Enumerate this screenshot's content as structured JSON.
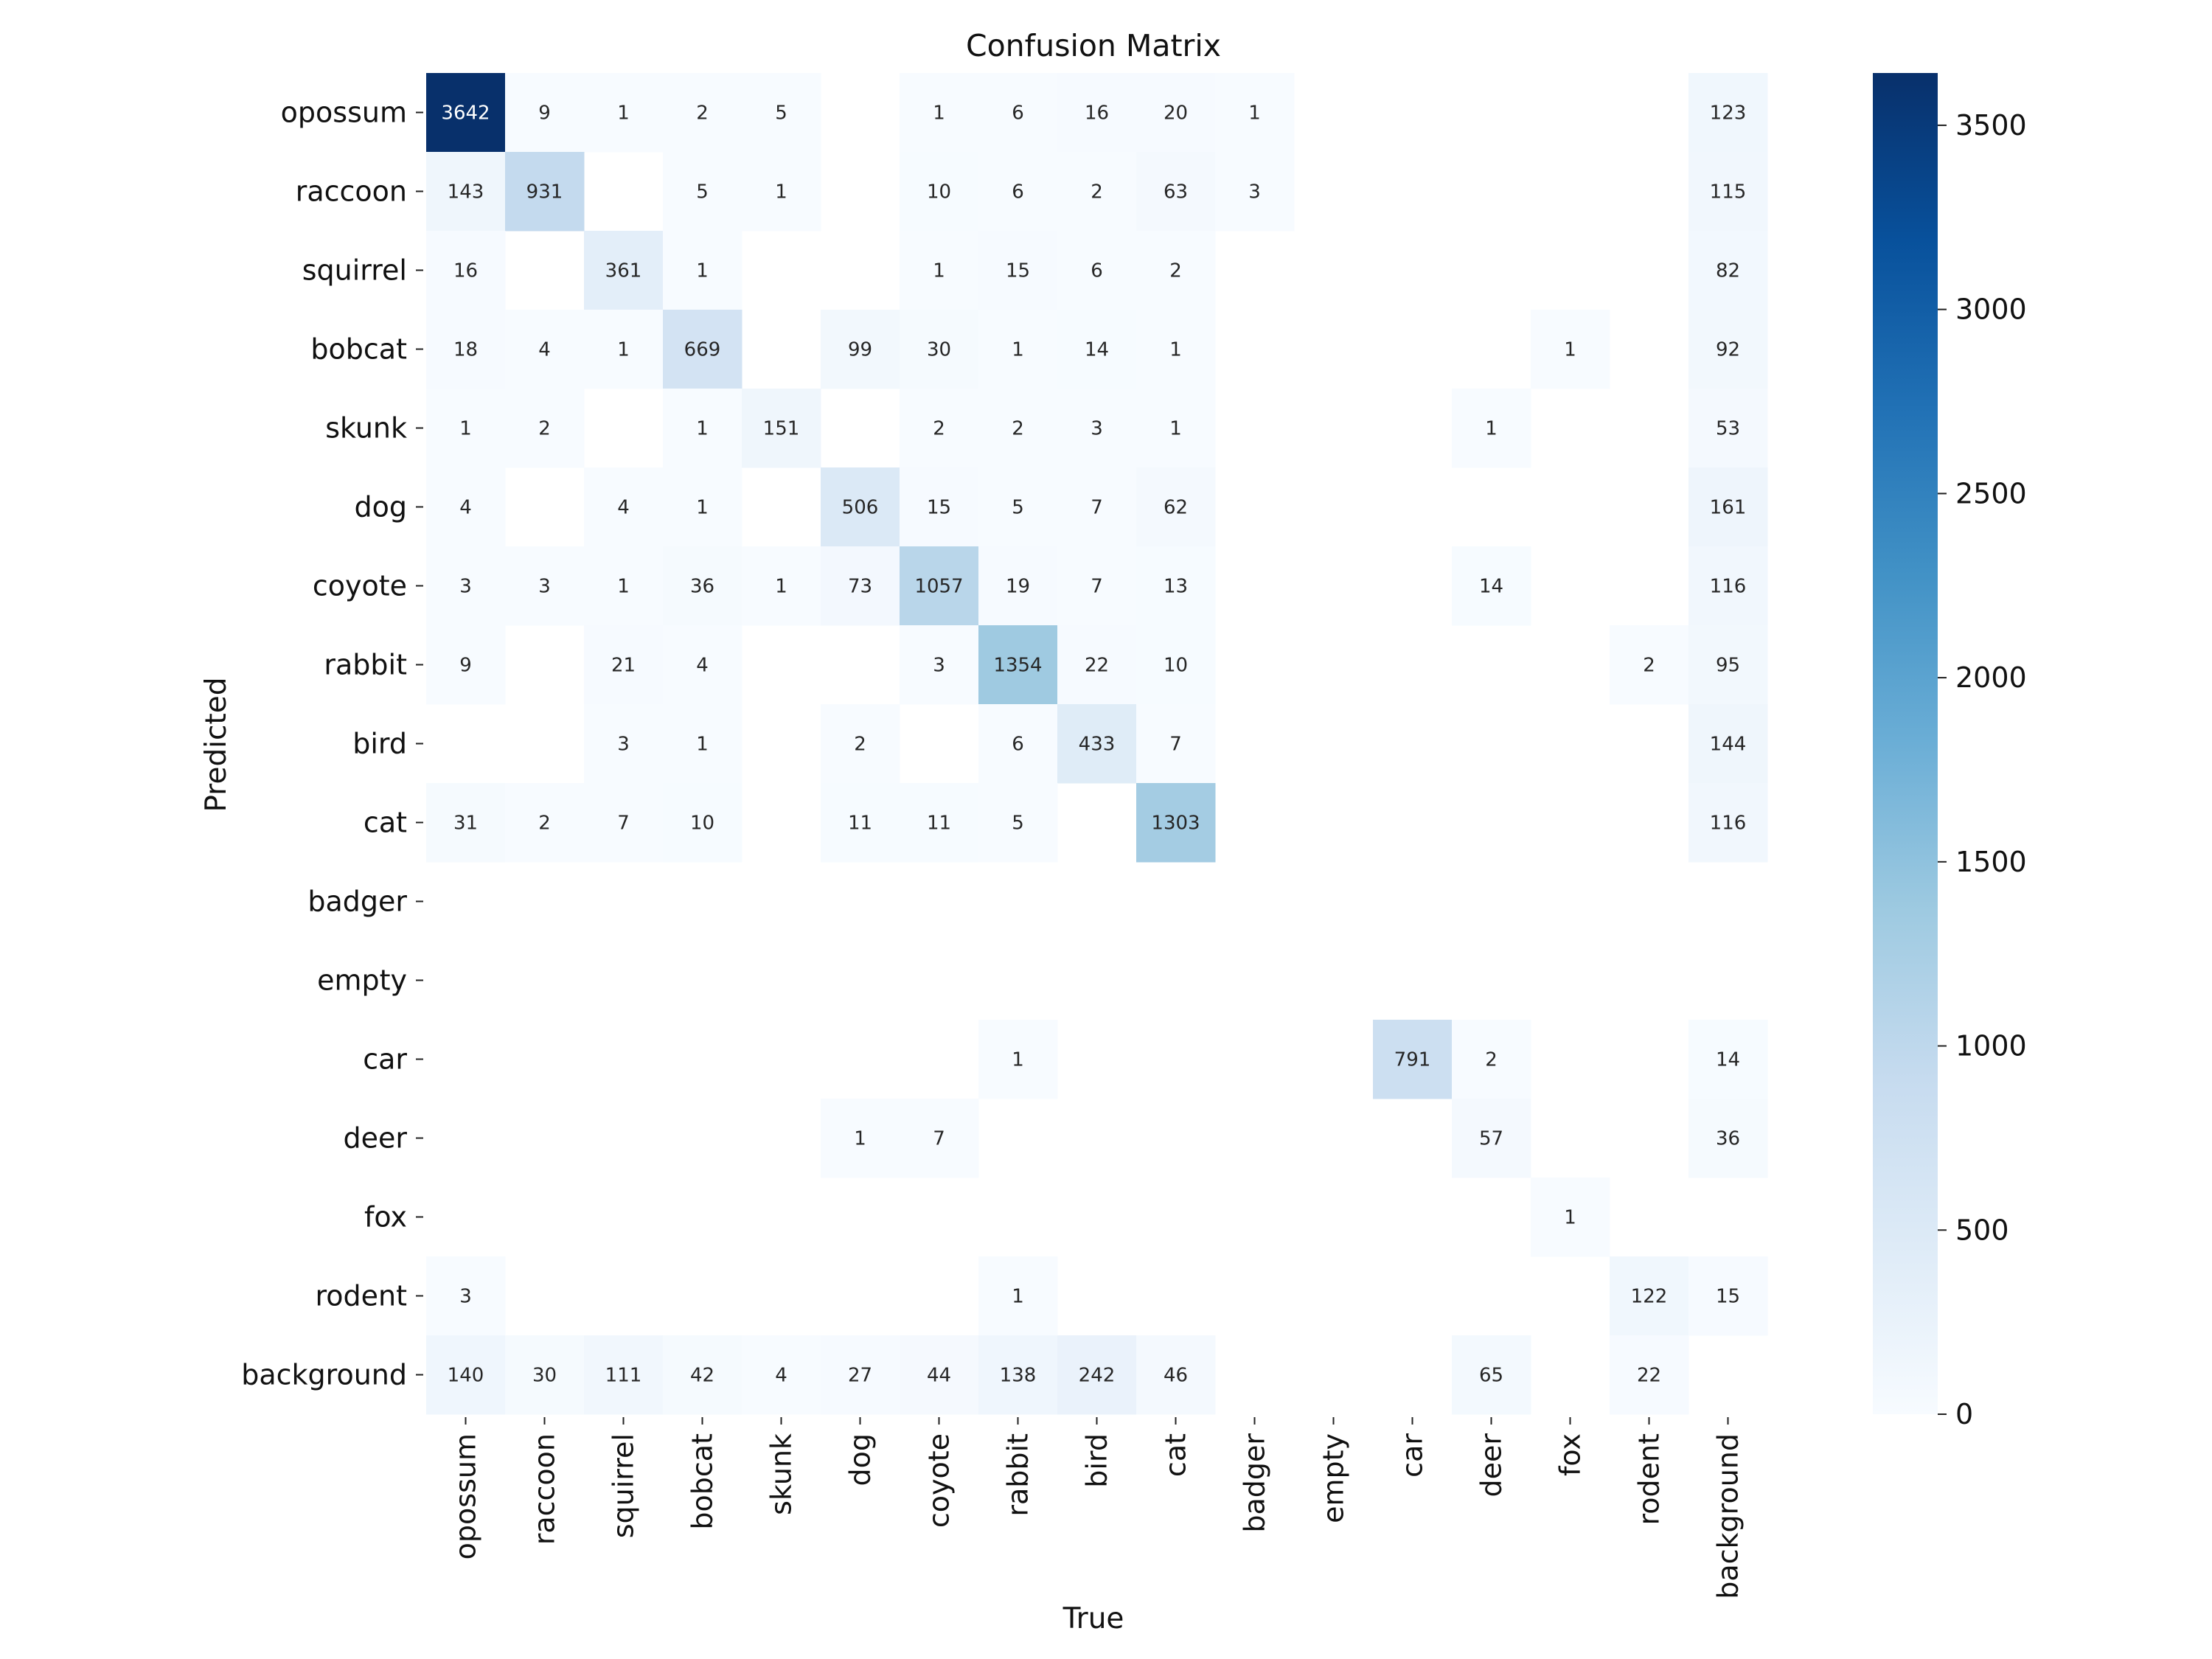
{
  "chart_data": {
    "type": "heatmap",
    "title": "Confusion Matrix",
    "xlabel": "True",
    "ylabel": "Predicted",
    "x_categories": [
      "opossum",
      "raccoon",
      "squirrel",
      "bobcat",
      "skunk",
      "dog",
      "coyote",
      "rabbit",
      "bird",
      "cat",
      "badger",
      "empty",
      "car",
      "deer",
      "fox",
      "rodent",
      "background"
    ],
    "y_categories": [
      "opossum",
      "raccoon",
      "squirrel",
      "bobcat",
      "skunk",
      "dog",
      "coyote",
      "rabbit",
      "bird",
      "cat",
      "badger",
      "empty",
      "car",
      "deer",
      "fox",
      "rodent",
      "background"
    ],
    "values": [
      [
        3642,
        9,
        1,
        2,
        5,
        null,
        1,
        6,
        16,
        20,
        1,
        null,
        null,
        null,
        null,
        null,
        123
      ],
      [
        143,
        931,
        null,
        5,
        1,
        null,
        10,
        6,
        2,
        63,
        3,
        null,
        null,
        null,
        null,
        null,
        115
      ],
      [
        16,
        null,
        361,
        1,
        null,
        null,
        1,
        15,
        6,
        2,
        null,
        null,
        null,
        null,
        null,
        null,
        82
      ],
      [
        18,
        4,
        1,
        669,
        null,
        99,
        30,
        1,
        14,
        1,
        null,
        null,
        null,
        null,
        1,
        null,
        92
      ],
      [
        1,
        2,
        null,
        1,
        151,
        null,
        2,
        2,
        3,
        1,
        null,
        null,
        null,
        1,
        null,
        null,
        53
      ],
      [
        4,
        null,
        4,
        1,
        null,
        506,
        15,
        5,
        7,
        62,
        null,
        null,
        null,
        null,
        null,
        null,
        161
      ],
      [
        3,
        3,
        1,
        36,
        1,
        73,
        1057,
        19,
        7,
        13,
        null,
        null,
        null,
        14,
        null,
        null,
        116
      ],
      [
        9,
        null,
        21,
        4,
        null,
        null,
        3,
        1354,
        22,
        10,
        null,
        null,
        null,
        null,
        null,
        2,
        95
      ],
      [
        null,
        null,
        3,
        1,
        null,
        2,
        null,
        6,
        433,
        7,
        null,
        null,
        null,
        null,
        null,
        null,
        144
      ],
      [
        31,
        2,
        7,
        10,
        null,
        11,
        11,
        5,
        null,
        1303,
        null,
        null,
        null,
        null,
        null,
        null,
        116
      ],
      [
        null,
        null,
        null,
        null,
        null,
        null,
        null,
        null,
        null,
        null,
        null,
        null,
        null,
        null,
        null,
        null,
        null
      ],
      [
        null,
        null,
        null,
        null,
        null,
        null,
        null,
        null,
        null,
        null,
        null,
        null,
        null,
        null,
        null,
        null,
        null
      ],
      [
        null,
        null,
        null,
        null,
        null,
        null,
        null,
        1,
        null,
        null,
        null,
        null,
        791,
        2,
        null,
        null,
        14
      ],
      [
        null,
        null,
        null,
        null,
        null,
        1,
        7,
        null,
        null,
        null,
        null,
        null,
        null,
        57,
        null,
        null,
        36
      ],
      [
        null,
        null,
        null,
        null,
        null,
        null,
        null,
        null,
        null,
        null,
        null,
        null,
        null,
        null,
        1,
        null,
        null
      ],
      [
        3,
        null,
        null,
        null,
        null,
        null,
        null,
        1,
        null,
        null,
        null,
        null,
        null,
        null,
        null,
        122,
        15
      ],
      [
        140,
        30,
        111,
        42,
        4,
        27,
        44,
        138,
        242,
        46,
        null,
        null,
        null,
        65,
        null,
        22,
        null
      ]
    ],
    "colorbar": {
      "range": [
        0,
        3642
      ],
      "ticks": [
        0,
        500,
        1000,
        1500,
        2000,
        2500,
        3000,
        3500
      ],
      "colormap": "Blues",
      "colors": [
        "#f7fbff",
        "#deebf7",
        "#c6dbef",
        "#9ecae1",
        "#6baed6",
        "#4292c6",
        "#2171b5",
        "#08519c",
        "#08306b"
      ]
    },
    "grid": false
  }
}
